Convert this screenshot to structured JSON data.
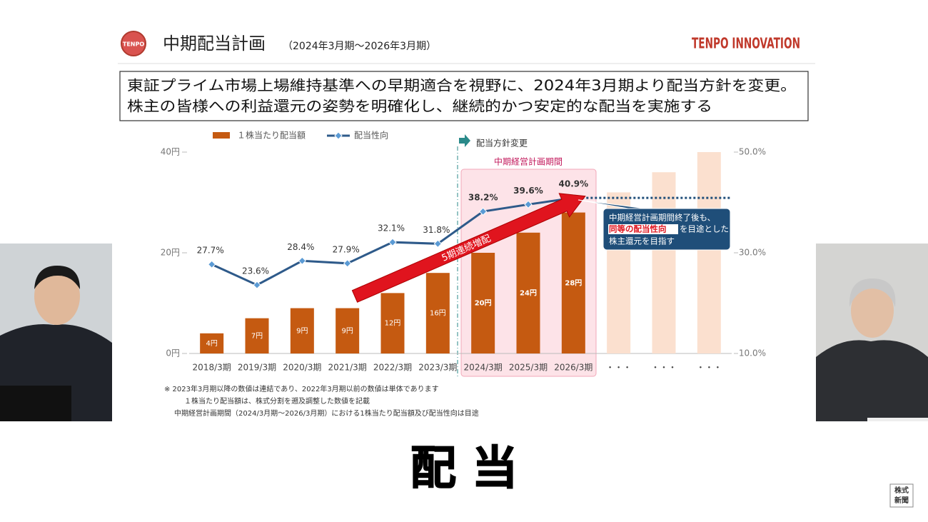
{
  "chart_data": {
    "type": "bar",
    "logo": "TENPO",
    "title": "中期配当計画",
    "subtitle": "（2024年3月期～2026年3月期）",
    "brand": "TENPO INNOVATION",
    "message": [
      "東証プライム市場上場維持基準への早期適合を視野に、2024年3月期より配当方針を変更。",
      "株主の皆様への利益還元の姿勢を明確化し、継続的かつ安定的な配当を実施する"
    ],
    "categories": [
      "2018/3期",
      "2019/3期",
      "2020/3期",
      "2021/3期",
      "2022/3期",
      "2023/3期",
      "2024/3期",
      "2025/3期",
      "2026/3期",
      "・・・",
      "・・・",
      "・・・"
    ],
    "series": [
      {
        "name": "１株当たり配当額",
        "type": "bar",
        "color": "#c55a11",
        "colors": [
          "#c55a11",
          "#c55a11",
          "#c55a11",
          "#c55a11",
          "#c55a11",
          "#c55a11",
          "#c55a11",
          "#c55a11",
          "#c55a11",
          "#fbe0cf",
          "#fbe0cf",
          "#fbe0cf"
        ],
        "values": [
          4,
          7,
          9,
          9,
          12,
          16,
          20,
          24,
          28,
          32,
          36,
          40
        ],
        "value_labels": [
          "4円",
          "7円",
          "9円",
          "9円",
          "12円",
          "16円",
          "20円",
          "24円",
          "28円",
          null,
          null,
          null
        ]
      },
      {
        "name": "配当性向",
        "type": "line",
        "axis": "y2",
        "color": "#2e5a8a",
        "marker_color": "#5b9bd5",
        "values": [
          27.7,
          23.6,
          28.4,
          27.9,
          32.1,
          31.8,
          38.2,
          39.6,
          40.9,
          null,
          null,
          null
        ],
        "value_labels": [
          "27.7%",
          "23.6%",
          "28.4%",
          "27.9%",
          "32.1%",
          "31.8%",
          "38.2%",
          "39.6%",
          "40.9%",
          null,
          null,
          null
        ]
      }
    ],
    "ylim": [
      0,
      40
    ],
    "yticks": [
      {
        "value": 0,
        "label": "0円"
      },
      {
        "value": 20,
        "label": "20円"
      },
      {
        "value": 40,
        "label": "40円"
      }
    ],
    "y2lim": [
      10,
      50
    ],
    "y2ticks": [
      {
        "value": 10,
        "label": "10.0%"
      },
      {
        "value": 30,
        "label": "30.0%"
      },
      {
        "value": 50,
        "label": "50.0%"
      }
    ],
    "policy_change": "配当方針変更",
    "plan_period": "中期経営計画期間",
    "arrow_label": "5期連続増配",
    "callout": [
      "中期経営計画期間終了後も、",
      "同等の配当性向",
      "を目途とした",
      "株主還元を目指す"
    ],
    "notes": [
      "※ 2023年3月期以降の数値は連結であり、2022年3月期以前の数値は単体であります",
      "１株当たり配当額は、株式分割を遡及調整した数値を記載",
      "中期経営計画期間（2024/3月期～2026/3月期）における1株当たり配当額及び配当性向は目途"
    ],
    "caption": "配 当",
    "watermark": [
      "株式",
      "新聞"
    ]
  }
}
